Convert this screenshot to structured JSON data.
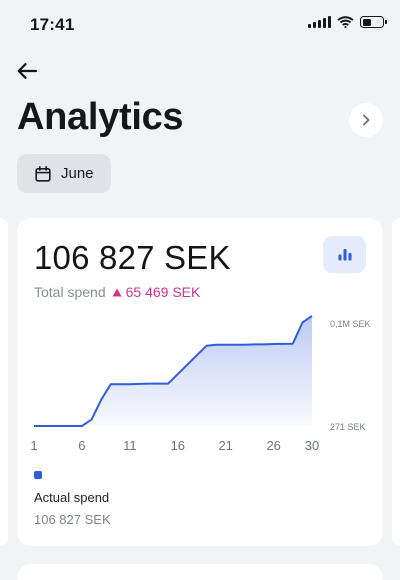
{
  "status_bar": {
    "time": "17:41"
  },
  "header": {
    "title": "Analytics"
  },
  "filter": {
    "month_label": "June"
  },
  "summary": {
    "amount": "106 827 SEK",
    "label": "Total spend",
    "delta": "65 469 SEK"
  },
  "legend": {
    "series_label": "Actual spend",
    "series_value": "106 827 SEK",
    "color": "#2f5ddb"
  },
  "colors": {
    "accent": "#2f5ddb",
    "delta": "#d3348b",
    "background": "#f2f3f5"
  },
  "chart_data": {
    "type": "area",
    "title": "",
    "xlabel": "",
    "ylabel": "",
    "x_ticks": [
      "1",
      "6",
      "11",
      "16",
      "21",
      "26",
      "30"
    ],
    "x_range": [
      1,
      30
    ],
    "y_tick_labels": [
      "0,1M SEK",
      "271 SEK"
    ],
    "y_range": [
      271,
      100000
    ],
    "grid": false,
    "legend": "bottom-left",
    "series": [
      {
        "name": "Actual spend",
        "x": [
          1,
          2,
          3,
          4,
          5,
          6,
          7,
          8,
          9,
          10,
          11,
          12,
          13,
          14,
          15,
          16,
          17,
          18,
          19,
          20,
          21,
          22,
          23,
          24,
          25,
          26,
          27,
          28,
          29,
          30
        ],
        "y": [
          271,
          271,
          271,
          271,
          271,
          271,
          6500,
          25500,
          40700,
          40700,
          40700,
          41000,
          41300,
          41300,
          41300,
          50500,
          59700,
          68900,
          78000,
          79000,
          79000,
          79000,
          79000,
          79300,
          79300,
          79700,
          79800,
          80000,
          100500,
          106827
        ]
      }
    ]
  }
}
